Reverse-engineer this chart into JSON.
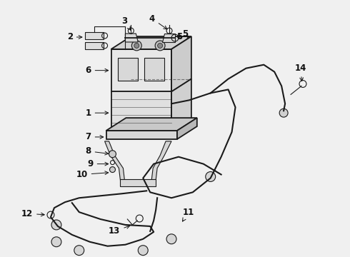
{
  "bg_color": "#f0f0f0",
  "line_color": "#1a1a1a",
  "text_color": "#111111",
  "lw_main": 1.3,
  "lw_thin": 0.8,
  "lw_cable": 1.5,
  "label_fontsize": 8.5
}
